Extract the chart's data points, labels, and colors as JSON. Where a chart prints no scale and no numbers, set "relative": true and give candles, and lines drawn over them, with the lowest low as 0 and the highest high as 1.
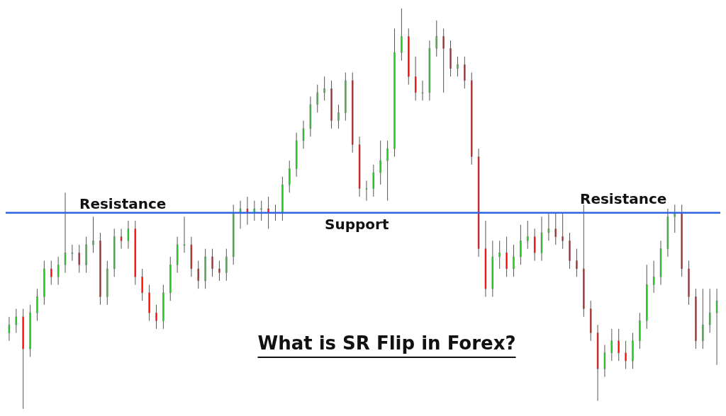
{
  "chart_data": {
    "type": "candlestick",
    "title": "What is SR Flip in Forex?",
    "relative": true,
    "categories": [
      null,
      null,
      null,
      null,
      null,
      null,
      null,
      null,
      null,
      null,
      null,
      null,
      null,
      null,
      null,
      null,
      null,
      null,
      null,
      null,
      null,
      null,
      null,
      null,
      null,
      null,
      null,
      null,
      null,
      null,
      null,
      null,
      null,
      null,
      null,
      null,
      null,
      null,
      null,
      null,
      null,
      null,
      null,
      null,
      null,
      null,
      null,
      null,
      null,
      null,
      null,
      null,
      null,
      null,
      null,
      null,
      null,
      null,
      null,
      null,
      null,
      null,
      null,
      null,
      null,
      null,
      null,
      null,
      null,
      null,
      null,
      null,
      null,
      null,
      null,
      null,
      null,
      null,
      null,
      null,
      null,
      null,
      null,
      null,
      null,
      null,
      null,
      null,
      null,
      null,
      null,
      null,
      null,
      null,
      null,
      null,
      null,
      null,
      null,
      null,
      null,
      null
    ],
    "ohlc": [
      [
        0.19,
        0.23,
        0.17,
        0.21
      ],
      [
        0.21,
        0.25,
        0.19,
        0.23
      ],
      [
        0.23,
        0.25,
        0.0,
        0.15
      ],
      [
        0.15,
        0.26,
        0.13,
        0.24
      ],
      [
        0.24,
        0.3,
        0.22,
        0.28
      ],
      [
        0.28,
        0.37,
        0.26,
        0.35
      ],
      [
        0.35,
        0.37,
        0.31,
        0.33
      ],
      [
        0.33,
        0.38,
        0.31,
        0.36
      ],
      [
        0.36,
        0.54,
        0.34,
        0.39
      ],
      [
        0.39,
        0.41,
        0.37,
        0.39
      ],
      [
        0.39,
        0.41,
        0.34,
        0.36
      ],
      [
        0.36,
        0.43,
        0.34,
        0.41
      ],
      [
        0.41,
        0.48,
        0.39,
        0.42
      ],
      [
        0.42,
        0.44,
        0.26,
        0.28
      ],
      [
        0.28,
        0.37,
        0.26,
        0.35
      ],
      [
        0.35,
        0.45,
        0.33,
        0.43
      ],
      [
        0.43,
        0.45,
        0.4,
        0.42
      ],
      [
        0.42,
        0.47,
        0.4,
        0.45
      ],
      [
        0.45,
        0.47,
        0.31,
        0.33
      ],
      [
        0.33,
        0.35,
        0.27,
        0.29
      ],
      [
        0.29,
        0.31,
        0.22,
        0.24
      ],
      [
        0.24,
        0.26,
        0.2,
        0.22
      ],
      [
        0.22,
        0.31,
        0.2,
        0.29
      ],
      [
        0.29,
        0.38,
        0.27,
        0.36
      ],
      [
        0.36,
        0.43,
        0.34,
        0.41
      ],
      [
        0.41,
        0.48,
        0.39,
        0.41
      ],
      [
        0.41,
        0.43,
        0.33,
        0.35
      ],
      [
        0.35,
        0.37,
        0.3,
        0.32
      ],
      [
        0.32,
        0.4,
        0.3,
        0.38
      ],
      [
        0.38,
        0.4,
        0.33,
        0.35
      ],
      [
        0.35,
        0.37,
        0.32,
        0.34
      ],
      [
        0.34,
        0.4,
        0.32,
        0.38
      ],
      [
        0.38,
        0.51,
        0.36,
        0.49
      ],
      [
        0.49,
        0.52,
        0.45,
        0.5
      ],
      [
        0.5,
        0.53,
        0.46,
        0.49
      ],
      [
        0.49,
        0.52,
        0.47,
        0.5
      ],
      [
        0.5,
        0.52,
        0.47,
        0.5
      ],
      [
        0.5,
        0.53,
        0.45,
        0.49
      ],
      [
        0.49,
        0.51,
        0.47,
        0.49
      ],
      [
        0.49,
        0.58,
        0.47,
        0.56
      ],
      [
        0.56,
        0.62,
        0.54,
        0.6
      ],
      [
        0.6,
        0.69,
        0.58,
        0.67
      ],
      [
        0.67,
        0.72,
        0.65,
        0.7
      ],
      [
        0.7,
        0.78,
        0.68,
        0.76
      ],
      [
        0.76,
        0.81,
        0.74,
        0.79
      ],
      [
        0.79,
        0.83,
        0.77,
        0.8
      ],
      [
        0.8,
        0.82,
        0.7,
        0.72
      ],
      [
        0.72,
        0.76,
        0.7,
        0.74
      ],
      [
        0.74,
        0.84,
        0.72,
        0.82
      ],
      [
        0.82,
        0.84,
        0.64,
        0.66
      ],
      [
        0.66,
        0.68,
        0.53,
        0.55
      ],
      [
        0.55,
        0.57,
        0.52,
        0.55
      ],
      [
        0.55,
        0.61,
        0.53,
        0.59
      ],
      [
        0.59,
        0.67,
        0.56,
        0.62
      ],
      [
        0.62,
        0.67,
        0.52,
        0.65
      ],
      [
        0.65,
        0.95,
        0.63,
        0.89
      ],
      [
        0.89,
        1.0,
        0.87,
        0.93
      ],
      [
        0.93,
        0.95,
        0.81,
        0.83
      ],
      [
        0.83,
        0.88,
        0.77,
        0.79
      ],
      [
        0.79,
        0.82,
        0.77,
        0.79
      ],
      [
        0.79,
        0.92,
        0.77,
        0.9
      ],
      [
        0.9,
        0.97,
        0.88,
        0.93
      ],
      [
        0.93,
        0.95,
        0.79,
        0.9
      ],
      [
        0.9,
        0.92,
        0.83,
        0.85
      ],
      [
        0.85,
        0.88,
        0.83,
        0.86
      ],
      [
        0.86,
        0.88,
        0.8,
        0.82
      ],
      [
        0.82,
        0.84,
        0.61,
        0.63
      ],
      [
        0.63,
        0.65,
        0.38,
        0.4
      ],
      [
        0.4,
        0.47,
        0.28,
        0.3
      ],
      [
        0.3,
        0.42,
        0.28,
        0.38
      ],
      [
        0.38,
        0.42,
        0.35,
        0.39
      ],
      [
        0.39,
        0.43,
        0.33,
        0.35
      ],
      [
        0.35,
        0.41,
        0.33,
        0.38
      ],
      [
        0.38,
        0.46,
        0.36,
        0.42
      ],
      [
        0.42,
        0.47,
        0.4,
        0.43
      ],
      [
        0.43,
        0.45,
        0.37,
        0.39
      ],
      [
        0.39,
        0.48,
        0.37,
        0.44
      ],
      [
        0.44,
        0.49,
        0.42,
        0.45
      ],
      [
        0.45,
        0.49,
        0.41,
        0.43
      ],
      [
        0.43,
        0.49,
        0.4,
        0.42
      ],
      [
        0.42,
        0.44,
        0.35,
        0.37
      ],
      [
        0.37,
        0.4,
        0.33,
        0.35
      ],
      [
        0.35,
        0.51,
        0.23,
        0.25
      ],
      [
        0.25,
        0.27,
        0.17,
        0.19
      ],
      [
        0.19,
        0.21,
        0.02,
        0.1
      ],
      [
        0.1,
        0.16,
        0.08,
        0.14
      ],
      [
        0.14,
        0.2,
        0.12,
        0.17
      ],
      [
        0.17,
        0.2,
        0.12,
        0.14
      ],
      [
        0.14,
        0.17,
        0.1,
        0.12
      ],
      [
        0.12,
        0.19,
        0.1,
        0.17
      ],
      [
        0.17,
        0.24,
        0.15,
        0.22
      ],
      [
        0.22,
        0.36,
        0.2,
        0.31
      ],
      [
        0.31,
        0.37,
        0.29,
        0.33
      ],
      [
        0.33,
        0.42,
        0.31,
        0.4
      ],
      [
        0.4,
        0.5,
        0.38,
        0.48
      ],
      [
        0.48,
        0.51,
        0.44,
        0.49
      ],
      [
        0.49,
        0.51,
        0.33,
        0.35
      ],
      [
        0.35,
        0.37,
        0.26,
        0.28
      ],
      [
        0.28,
        0.3,
        0.15,
        0.17
      ],
      [
        0.17,
        0.3,
        0.15,
        0.21
      ],
      [
        0.21,
        0.3,
        0.19,
        0.24
      ],
      [
        0.24,
        0.3,
        0.11,
        0.27
      ]
    ],
    "colors": [
      "#22cc22",
      "#22cc22",
      "#ff0000",
      "#22cc22",
      "#22cc22",
      "#22cc22",
      "#ff0000",
      "#22cc22",
      "#22cc22",
      "#22cc22",
      "#ff0000",
      "#22cc22",
      "#22cc22",
      "#ff0000",
      "#22cc22",
      "#22cc22",
      "#ff0000",
      "#22cc22",
      "#ff0000",
      "#ff0000",
      "#ff0000",
      "#ff0000",
      "#22cc22",
      "#22cc22",
      "#22cc22",
      "#22cc22",
      "#ff0000",
      "#ff0000",
      "#22cc22",
      "#ff0000",
      "#ff0000",
      "#22cc22",
      "#22cc22",
      "#22cc22",
      "#ff0000",
      "#22cc22",
      "#22cc22",
      "#ff0000",
      "#22cc22",
      "#22cc22",
      "#22cc22",
      "#22cc22",
      "#22cc22",
      "#22cc22",
      "#22cc22",
      "#22cc22",
      "#ff0000",
      "#22cc22",
      "#22cc22",
      "#ff0000",
      "#ff0000",
      "#22cc22",
      "#22cc22",
      "#22cc22",
      "#22cc22",
      "#22cc22",
      "#22cc22",
      "#ff0000",
      "#ff0000",
      "#22cc22",
      "#22cc22",
      "#22cc22",
      "#ff0000",
      "#ff0000",
      "#22cc22",
      "#ff0000",
      "#ff0000",
      "#ff0000",
      "#ff0000",
      "#22cc22",
      "#22cc22",
      "#ff0000",
      "#22cc22",
      "#22cc22",
      "#22cc22",
      "#ff0000",
      "#22cc22",
      "#22cc22",
      "#ff0000",
      "#ff0000",
      "#ff0000",
      "#ff0000",
      "#ff0000",
      "#ff0000",
      "#ff0000",
      "#22cc22",
      "#22cc22",
      "#ff0000",
      "#ff0000",
      "#22cc22",
      "#22cc22",
      "#22cc22",
      "#22cc22",
      "#22cc22",
      "#22cc22",
      "#22cc22",
      "#ff0000",
      "#ff0000",
      "#ff0000",
      "#22cc22",
      "#22cc22",
      "#22cc22"
    ],
    "ref_lines": [
      {
        "axis": "y",
        "value": 0.49,
        "color": "#2f62e6"
      }
    ],
    "annotations": [
      "Resistance",
      "Support",
      "Resistance"
    ]
  }
}
